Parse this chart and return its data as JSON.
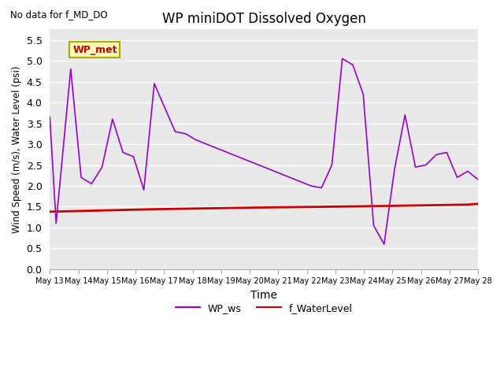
{
  "title": "WP miniDOT Dissolved Oxygen",
  "no_data_text": "No data for f_MD_DO",
  "xlabel": "Time",
  "ylabel": "Wind Speed (m/s), Water Level (psi)",
  "legend_box_label": "WP_met",
  "ylim": [
    0.0,
    5.75
  ],
  "yticks": [
    0.0,
    0.5,
    1.0,
    1.5,
    2.0,
    2.5,
    3.0,
    3.5,
    4.0,
    4.5,
    5.0,
    5.5
  ],
  "fig_bg_color": "#ffffff",
  "plot_bg_color": "#e8e8e8",
  "grid_color": "#ffffff",
  "wp_ws_color": "#9900cc",
  "f_wl_color": "#cc0000",
  "xtick_labels": [
    "May 13",
    "May 14",
    "May 15",
    "May 16",
    "May 17",
    "May 18",
    "May 19",
    "May 20",
    "May 21",
    "May 22",
    "May 23",
    "May 24",
    "May 25",
    "May 26",
    "May 27",
    "May 28"
  ],
  "wp_ws_x": [
    0,
    0.3,
    1,
    1.5,
    2,
    2.5,
    3,
    3.5,
    4,
    4.5,
    5,
    6,
    6.5,
    7,
    7.5,
    8,
    8.5,
    9,
    9.5,
    10,
    10.5,
    11,
    11.5,
    12,
    12.5,
    13,
    13.5,
    14,
    14.5,
    15,
    15.5,
    16,
    16.5,
    17,
    17.5,
    18,
    18.5,
    19,
    19.5,
    20,
    20.5
  ],
  "wp_ws_y": [
    3.65,
    1.1,
    4.8,
    2.2,
    2.05,
    2.45,
    3.6,
    2.8,
    2.7,
    1.9,
    4.45,
    3.3,
    3.25,
    3.1,
    3.0,
    2.9,
    2.8,
    2.7,
    2.6,
    2.5,
    2.4,
    2.3,
    2.2,
    2.1,
    2.0,
    1.95,
    2.5,
    5.05,
    4.9,
    4.2,
    1.05,
    0.6,
    2.4,
    3.7,
    2.45,
    2.5,
    2.75,
    2.8,
    2.2,
    2.35,
    2.15
  ],
  "f_wl_x": [
    0,
    5,
    10,
    15,
    20,
    20.5
  ],
  "f_wl_y": [
    1.38,
    1.44,
    1.48,
    1.51,
    1.55,
    1.57
  ]
}
